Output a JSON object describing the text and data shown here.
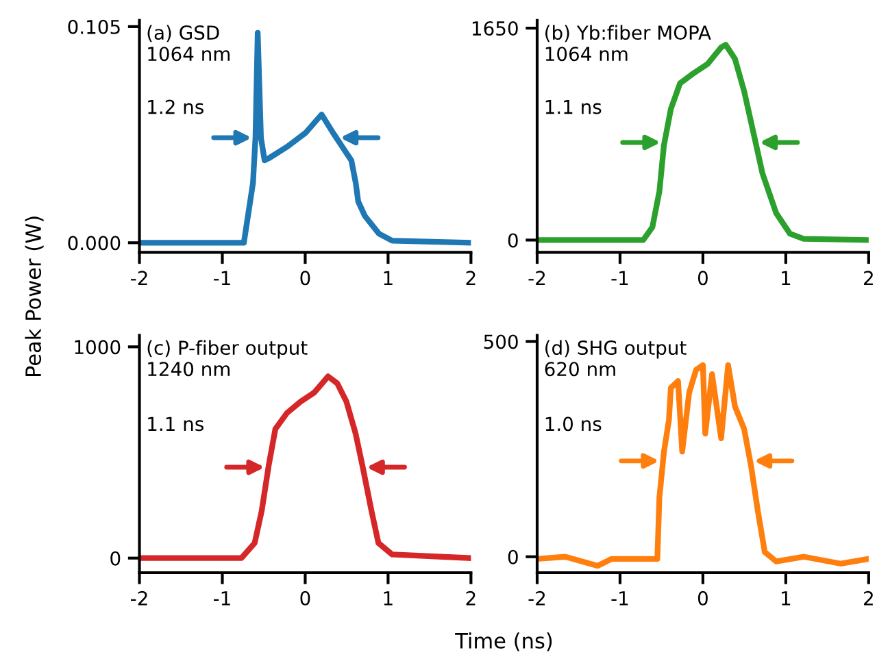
{
  "chart_data": [
    {
      "type": "line",
      "title": "(a) GSD",
      "subtitle": "1064 nm",
      "annotations": [
        "1.2 ns"
      ],
      "ylabel": "Peak Power (W)",
      "xlim": [
        -2,
        2
      ],
      "xticks": [
        -2,
        -1,
        0,
        1,
        2
      ],
      "ylim": [
        -0.0047,
        0.108
      ],
      "yticks": [
        {
          "value": 0,
          "label": "0.000"
        },
        {
          "value": 0.105,
          "label": "0.105"
        }
      ],
      "grid": false,
      "series": [
        {
          "color": "#1f77b4",
          "x": [
            -2,
            -0.74,
            -0.63,
            -0.6,
            -0.573,
            -0.534,
            -0.49,
            -0.44,
            -0.215,
            0.005,
            0.198,
            0.336,
            0.446,
            0.557,
            0.61,
            0.64,
            0.72,
            0.89,
            1.05,
            2
          ],
          "values": [
            0,
            0,
            0.029,
            0.051,
            0.102,
            0.051,
            0.04,
            0.041,
            0.0467,
            0.0534,
            0.0623,
            0.0534,
            0.0467,
            0.04,
            0.029,
            0.02,
            0.013,
            0.0044,
            0.001,
            0
          ]
        }
      ]
    },
    {
      "type": "line",
      "title": "(b) Yb:fiber MOPA",
      "subtitle": "1064 nm",
      "annotations": [
        "1.1 ns"
      ],
      "xlim": [
        -2,
        2
      ],
      "xticks": [
        -2,
        -1,
        0,
        1,
        2
      ],
      "ylim": [
        -96,
        1710
      ],
      "yticks": [
        0,
        1650
      ],
      "grid": false,
      "series": [
        {
          "color": "#2ca02c",
          "x": [
            -2,
            -0.72,
            -0.61,
            -0.525,
            -0.47,
            -0.387,
            -0.276,
            -0.11,
            0.055,
            0.22,
            0.276,
            0.387,
            0.497,
            0.608,
            0.718,
            0.884,
            1.05,
            1.215,
            2
          ],
          "values": [
            0,
            0,
            100,
            380,
            740,
            1020,
            1220,
            1300,
            1370,
            1500,
            1520,
            1410,
            1160,
            840,
            520,
            210,
            50,
            10,
            0
          ]
        }
      ]
    },
    {
      "type": "line",
      "title": "(c) P-fiber output",
      "subtitle": "1240 nm",
      "annotations": [
        "1.1 ns"
      ],
      "xlabel": "Time (ns)",
      "xlim": [
        -2,
        2
      ],
      "xticks": [
        -2,
        -1,
        0,
        1,
        2
      ],
      "ylim": [
        -69,
        1054
      ],
      "yticks": [
        0,
        1000
      ],
      "grid": false,
      "series": [
        {
          "color": "#d62728",
          "x": [
            -2,
            -0.77,
            -0.61,
            -0.525,
            -0.44,
            -0.36,
            -0.22,
            -0.055,
            0.11,
            0.276,
            0.387,
            0.497,
            0.608,
            0.69,
            0.8,
            0.884,
            1.05,
            2
          ],
          "values": [
            0,
            0,
            71,
            223,
            439,
            611,
            687,
            741,
            784,
            860,
            827,
            741,
            590,
            439,
            223,
            71,
            17,
            0
          ]
        }
      ]
    },
    {
      "type": "line",
      "title": "(d) SHG output",
      "subtitle": "620 nm",
      "annotations": [
        "1.0 ns"
      ],
      "xlim": [
        -2,
        2
      ],
      "xticks": [
        -2,
        -1,
        0,
        1,
        2
      ],
      "ylim": [
        -37,
        514
      ],
      "yticks": [
        0,
        500
      ],
      "grid": false,
      "series": [
        {
          "color": "#ff7f0e",
          "x": [
            -2,
            -1.66,
            -1.27,
            -1.1,
            -0.55,
            -0.525,
            -0.47,
            -0.41,
            -0.387,
            -0.3,
            -0.25,
            -0.166,
            -0.083,
            0,
            0.028,
            0.11,
            0.22,
            0.304,
            0.387,
            0.497,
            0.58,
            0.663,
            0.746,
            0.884,
            1.22,
            1.66,
            2
          ],
          "values": [
            -5,
            0,
            -21,
            -5,
            -5,
            138,
            244,
            318,
            392,
            408,
            244,
            381,
            434,
            445,
            286,
            424,
            275,
            445,
            349,
            297,
            212,
            106,
            11,
            -11,
            0,
            -16,
            -5
          ]
        }
      ]
    }
  ]
}
